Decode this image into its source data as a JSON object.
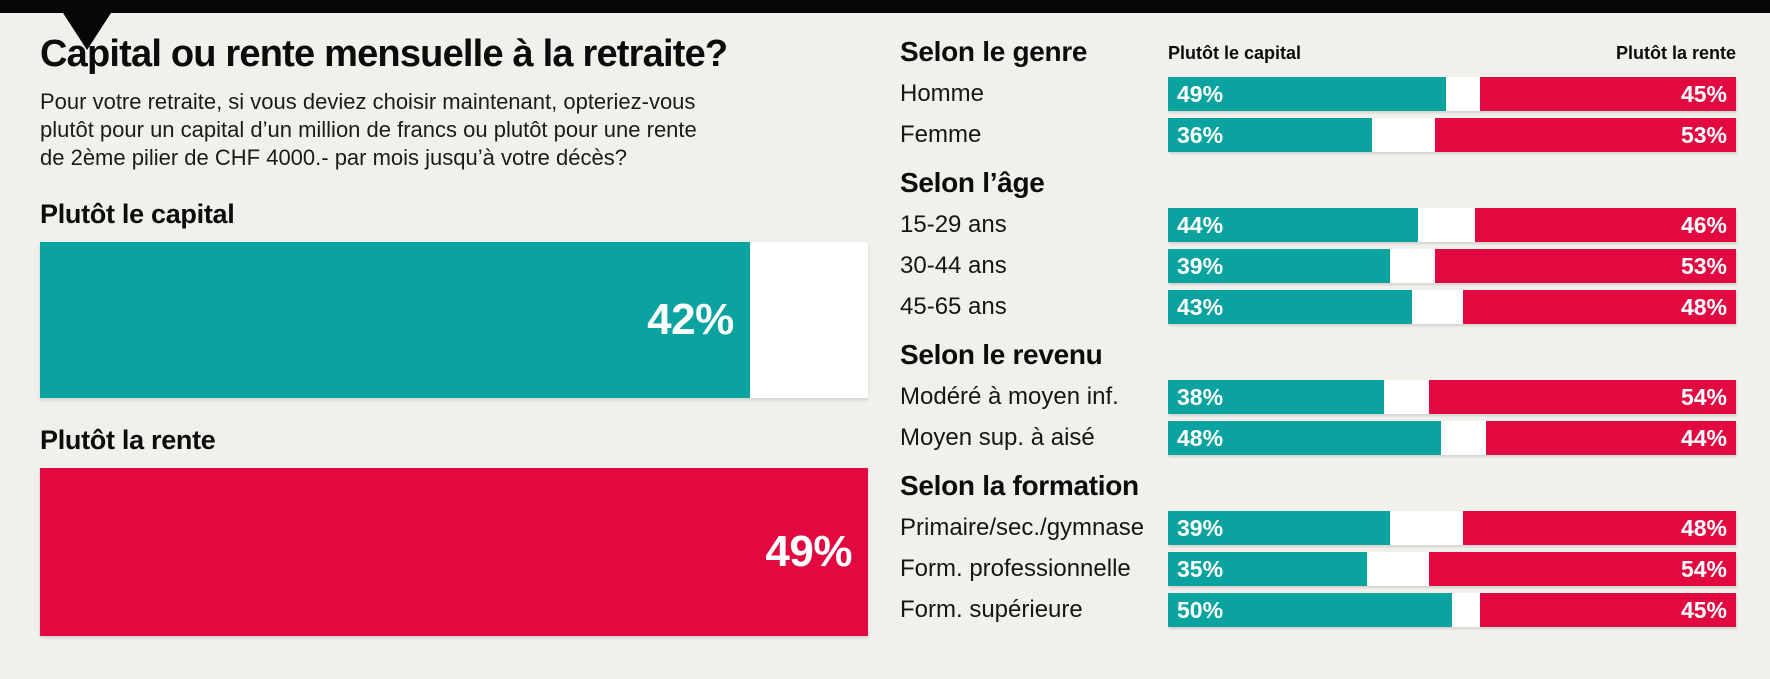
{
  "colors": {
    "teal": "#0AA3A0",
    "red": "#E20840",
    "background": "#F1F0EB",
    "topbar": "#070707",
    "track": "#FFFFFF",
    "value_text": "#FFFFFF",
    "ink": "#0C0C0C"
  },
  "header": {
    "title": "Capital ou rente mensuelle à la retraite?",
    "subtitle_lines": [
      "Pour votre retraite, si vous deviez choisir maintenant, opteriez-vous",
      "plutôt pour un capital d’un million de francs ou plutôt pour une rente",
      "de 2ème pilier de CHF 4000.- par mois jusqu’à votre décès?"
    ]
  },
  "chart_data": {
    "type": "bar",
    "title": "Capital ou rente mensuelle à la retraite?",
    "units": "%",
    "overall_scale_max": 49,
    "overall": [
      {
        "label": "Plutôt le capital",
        "value": 42,
        "color": "#0AA3A0"
      },
      {
        "label": "Plutôt la rente",
        "value": 49,
        "color": "#E20840"
      }
    ],
    "breakdown_legend": {
      "left": "Plutôt le capital",
      "right": "Plutôt la rente"
    },
    "groups": [
      {
        "title": "Selon le genre",
        "rows": [
          {
            "label": "Homme",
            "capital": 49,
            "rente": 45
          },
          {
            "label": "Femme",
            "capital": 36,
            "rente": 53
          }
        ]
      },
      {
        "title": "Selon l’âge",
        "rows": [
          {
            "label": "15-29 ans",
            "capital": 44,
            "rente": 46
          },
          {
            "label": "30-44 ans",
            "capital": 39,
            "rente": 53
          },
          {
            "label": "45-65 ans",
            "capital": 43,
            "rente": 48
          }
        ]
      },
      {
        "title": "Selon le revenu",
        "rows": [
          {
            "label": "Modéré à moyen inf.",
            "capital": 38,
            "rente": 54
          },
          {
            "label": "Moyen sup. à aisé",
            "capital": 48,
            "rente": 44
          }
        ]
      },
      {
        "title": "Selon la formation",
        "rows": [
          {
            "label": "Primaire/sec./gymnase",
            "capital": 39,
            "rente": 48
          },
          {
            "label": "Form. professionnelle",
            "capital": 35,
            "rente": 54
          },
          {
            "label": "Form. supérieure",
            "capital": 50,
            "rente": 45
          }
        ]
      }
    ]
  }
}
